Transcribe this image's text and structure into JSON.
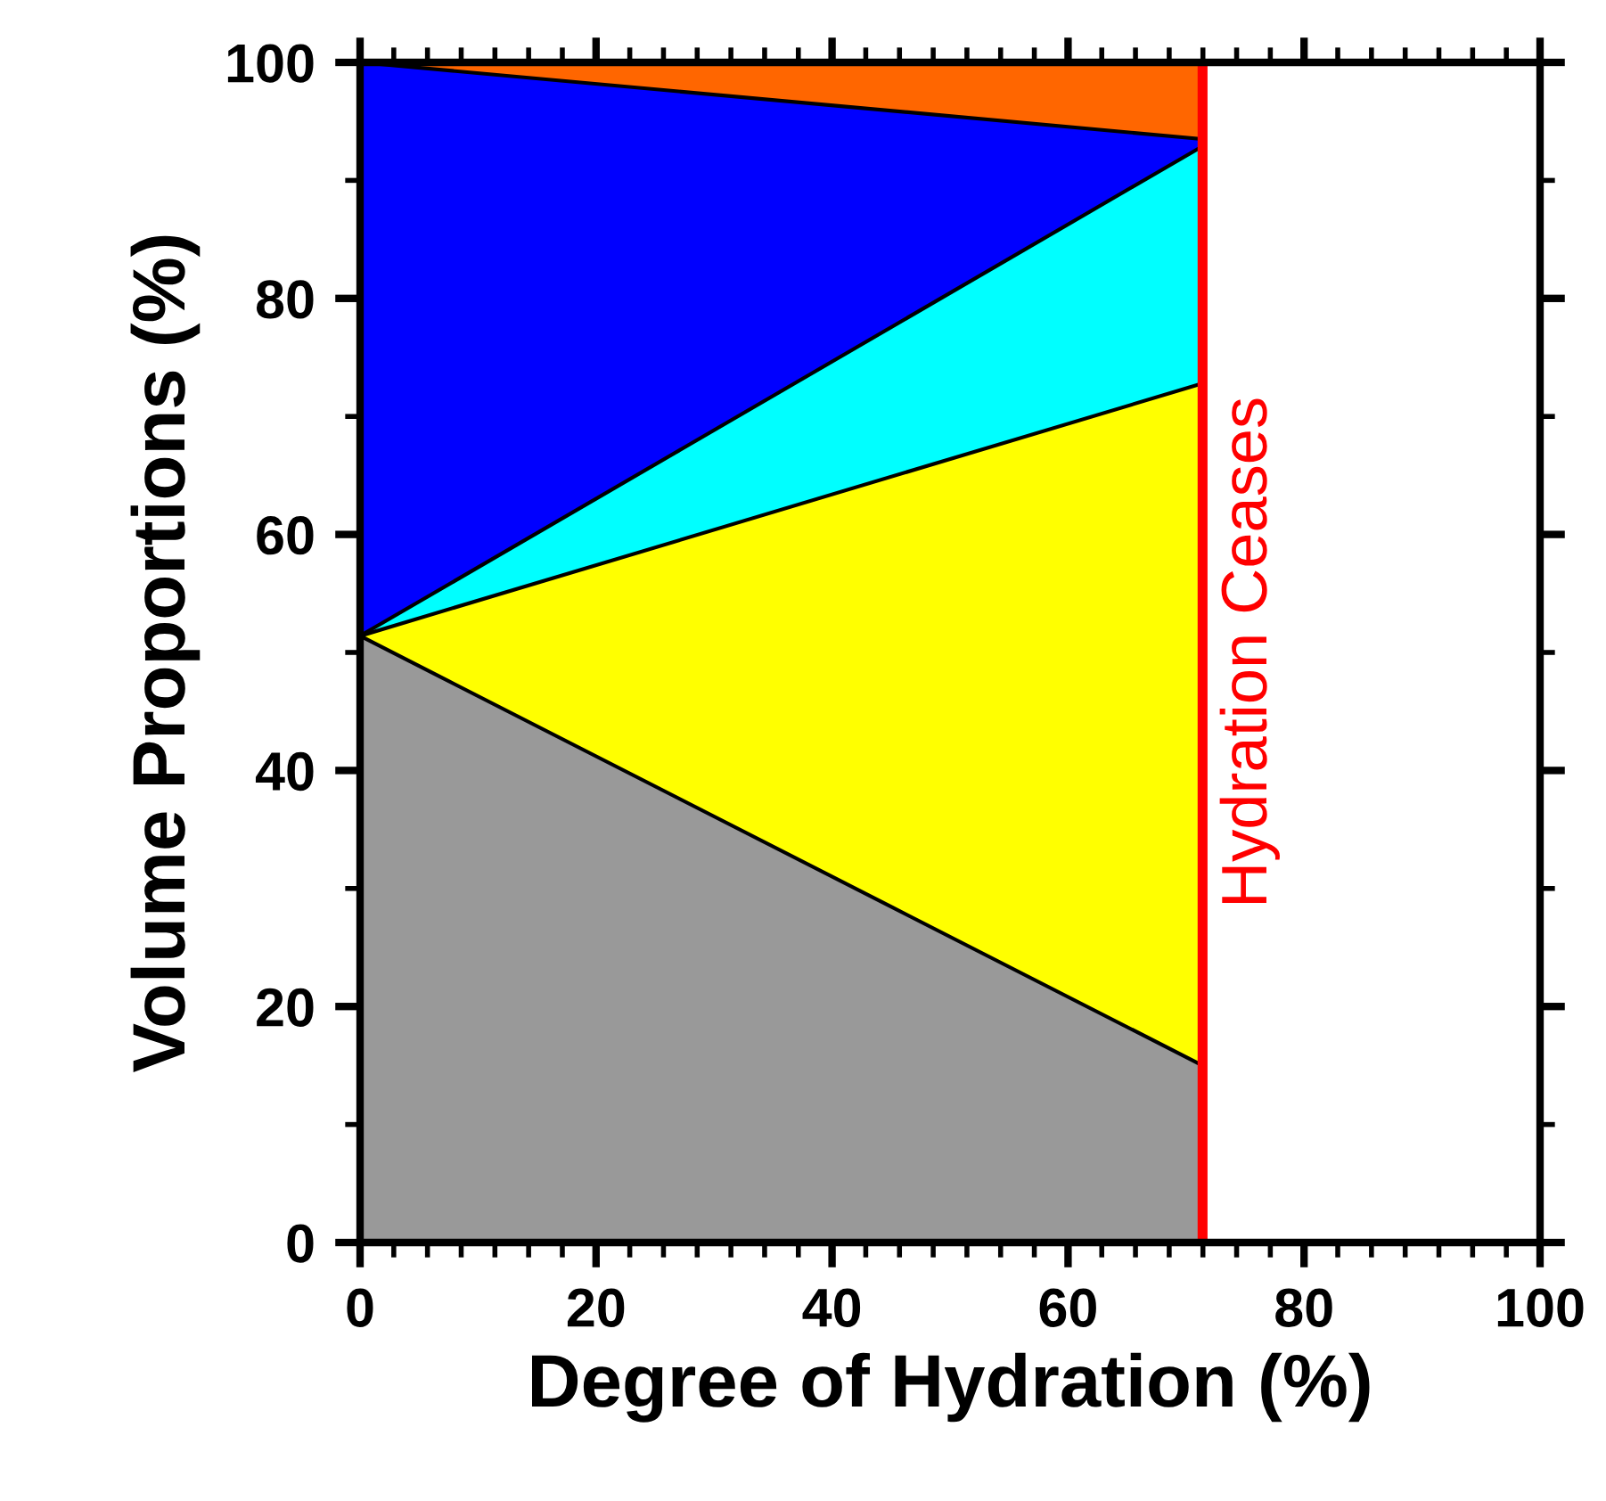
{
  "chart_data": {
    "type": "area",
    "stacked": true,
    "xlabel": "Degree of Hydration (%)",
    "ylabel": "Volume Proportions (%)",
    "x": [
      0,
      71.4
    ],
    "series": [
      {
        "color": "#999999",
        "values": [
          51.4,
          15.0
        ]
      },
      {
        "color": "#ffff00",
        "values": [
          0,
          57.8
        ]
      },
      {
        "color": "#00ffff",
        "values": [
          0,
          20.1
        ]
      },
      {
        "color": "#0000ff",
        "values": [
          48.6,
          0.6
        ]
      },
      {
        "color": "#ff6600",
        "values": [
          0,
          6.5
        ]
      }
    ],
    "xlim": [
      0,
      100
    ],
    "ylim": [
      0,
      100
    ],
    "xticks": [
      0,
      20,
      40,
      60,
      80,
      100
    ],
    "yticks": [
      0,
      20,
      40,
      60,
      80,
      100
    ],
    "grid": false,
    "legend": false,
    "ref_lines": [
      {
        "axis": "x",
        "value": 71.4,
        "label": "Hydration Ceases",
        "color": "#ff0000"
      }
    ]
  }
}
